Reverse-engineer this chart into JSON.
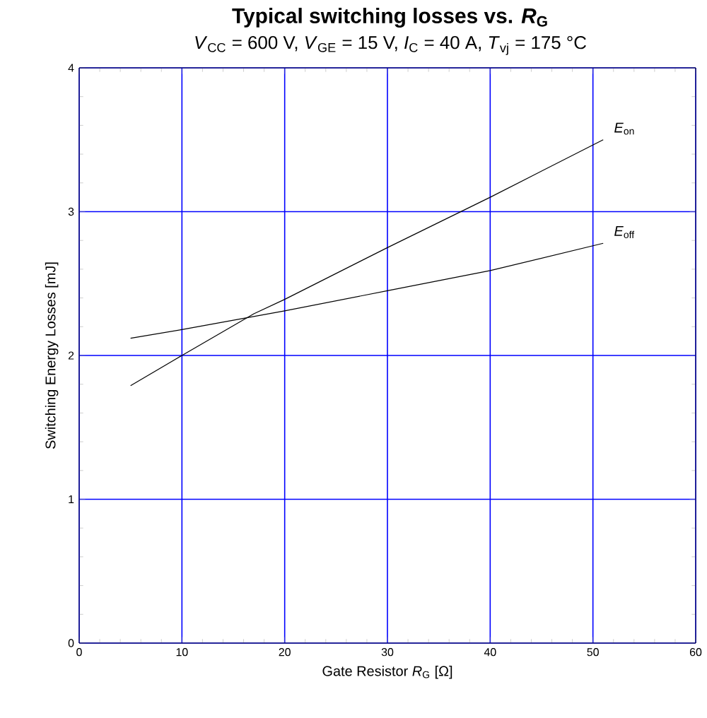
{
  "chart_data": {
    "type": "line",
    "title": "Typical switching losses vs. *R*$_{G}$",
    "subtitle": "*V*$_{CC}$ = 600 V, *V*$_{GE}$ = 15 V, *I*$_{C}$ = 40 A, *T*$_{vj}$ = 175 °C",
    "xlabel": "Gate Resistor *R*$_{G}$ [Ω]",
    "ylabel": "Switching Energy Losses [mJ]",
    "series": [
      {
        "name": "*E*$_{on}$",
        "color": "#000000",
        "x": [
          5,
          10,
          17,
          20,
          30,
          40,
          51
        ],
        "values": [
          1.79,
          2.0,
          2.29,
          2.39,
          2.75,
          3.1,
          3.5
        ]
      },
      {
        "name": "*E*$_{off}$",
        "color": "#000000",
        "x": [
          5,
          10,
          20,
          30,
          40,
          51
        ],
        "values": [
          2.12,
          2.18,
          2.31,
          2.45,
          2.59,
          2.78
        ]
      }
    ],
    "xlim": [
      0,
      60
    ],
    "ylim": [
      0,
      4
    ],
    "xticks": [
      0,
      10,
      20,
      30,
      40,
      50,
      60
    ],
    "yticks": [
      0,
      1,
      2,
      3,
      4
    ],
    "grid": true,
    "legend": false,
    "marker": "none",
    "line_style": "solid"
  }
}
